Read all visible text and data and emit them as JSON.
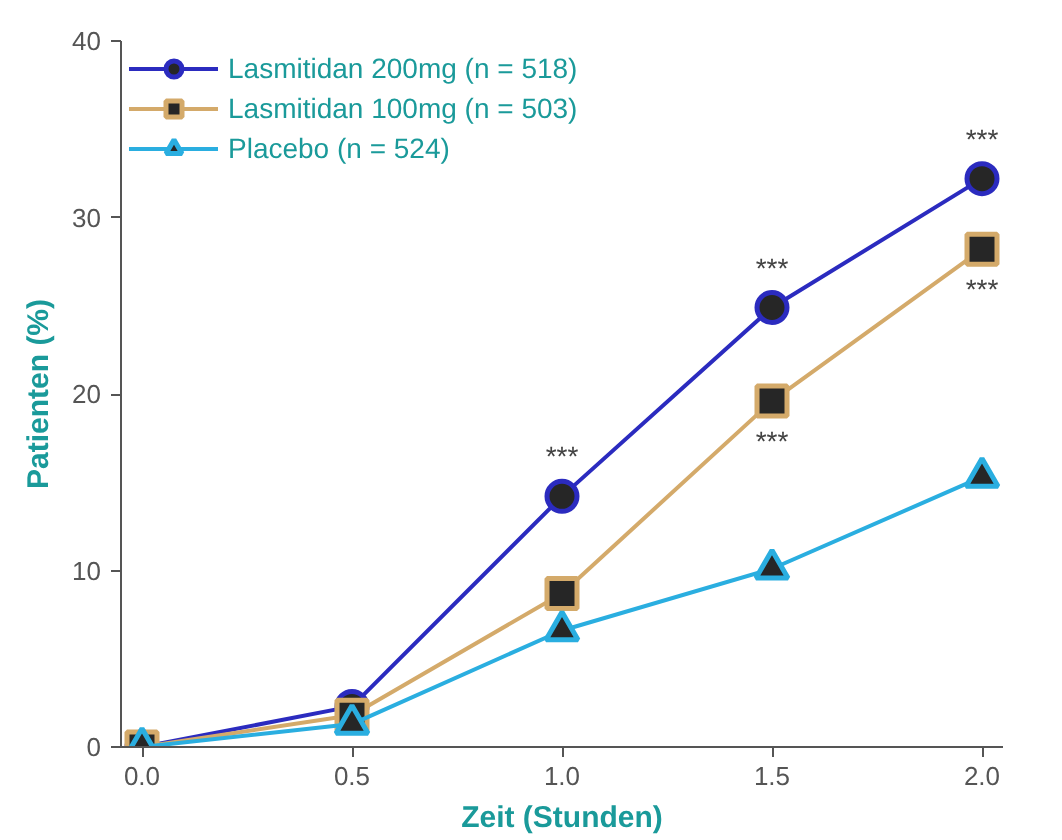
{
  "chart_data": {
    "type": "line",
    "xlabel": "Zeit (Stunden)",
    "ylabel": "Patienten (%)",
    "x": [
      0.0,
      0.5,
      1.0,
      1.5,
      2.0
    ],
    "series": [
      {
        "name": "Lasmitidan 200mg (n = 518)",
        "color": "#2b2bbf",
        "marker": "circle",
        "values": [
          0,
          2.3,
          14.2,
          24.9,
          32.2
        ]
      },
      {
        "name": "Lasmitidan 100mg (n = 503)",
        "color": "#d4aa6a",
        "marker": "square",
        "values": [
          0,
          1.8,
          8.7,
          19.6,
          28.2
        ]
      },
      {
        "name": "Placebo (n = 524)",
        "color": "#2aaee0",
        "marker": "triangle",
        "values": [
          0,
          1.3,
          6.6,
          10.1,
          15.3
        ]
      }
    ],
    "annotations": [
      {
        "text": "***",
        "x": 1.0,
        "y": 14.2
      },
      {
        "text": "***",
        "x": 1.5,
        "y": 24.9
      },
      {
        "text": "***",
        "x": 1.5,
        "y": 19.6
      },
      {
        "text": "***",
        "x": 2.0,
        "y": 32.2
      },
      {
        "text": "***",
        "x": 2.0,
        "y": 28.2
      }
    ],
    "xlim": [
      -0.05,
      2.05
    ],
    "xticks": [
      {
        "value": 0,
        "label": "0.0"
      },
      {
        "value": 0.5,
        "label": "0.5"
      },
      {
        "value": 1.0,
        "label": "1.0"
      },
      {
        "value": 1.5,
        "label": "1.5"
      },
      {
        "value": 2.0,
        "label": "2.0"
      }
    ],
    "ylim": [
      0,
      40
    ],
    "yticks": [
      0,
      10,
      20,
      30,
      40
    ],
    "grid": false,
    "legend": "top left",
    "line_style": "solid"
  }
}
